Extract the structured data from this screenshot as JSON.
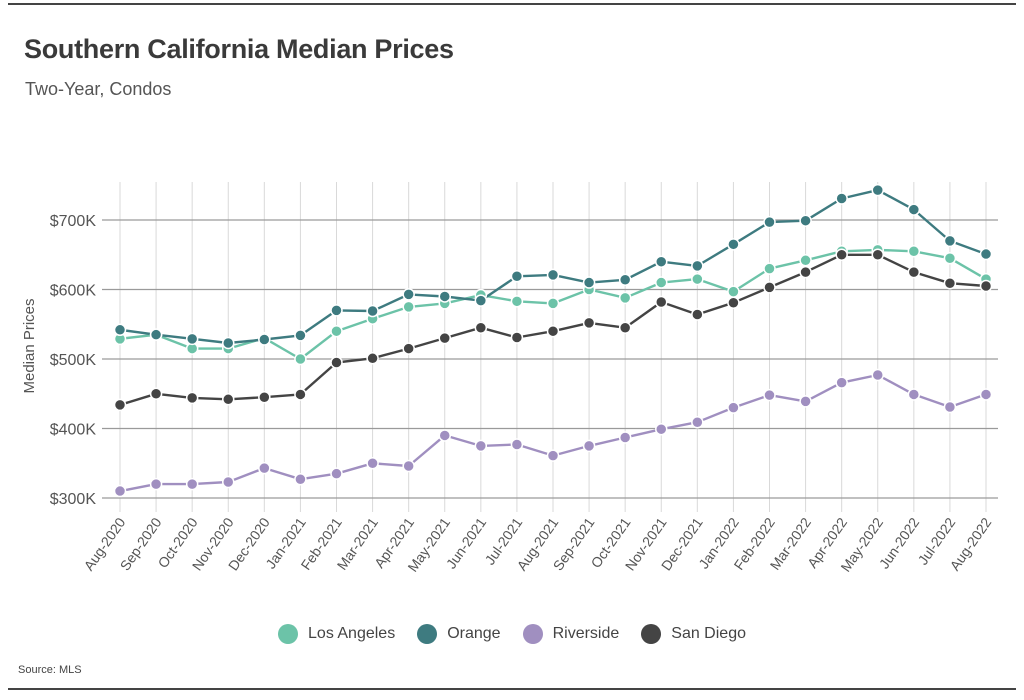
{
  "header": {
    "title": "Southern California Median Prices",
    "subtitle": "Two-Year, Condos"
  },
  "footer": {
    "source": "Source:  MLS"
  },
  "chart_data": {
    "type": "line",
    "title": "Southern California Median Prices",
    "subtitle": "Two-Year, Condos",
    "xlabel": "",
    "ylabel": "Median Prices",
    "ylim": [
      300000,
      750000
    ],
    "yticks": [
      300000,
      400000,
      500000,
      600000,
      700000
    ],
    "ytick_labels": [
      "$300K",
      "$400K",
      "$500K",
      "$600K",
      "$700K"
    ],
    "grid": "vertical",
    "legend_position": "bottom",
    "categories": [
      "Aug-2020",
      "Sep-2020",
      "Oct-2020",
      "Nov-2020",
      "Dec-2020",
      "Jan-2021",
      "Feb-2021",
      "Mar-2021",
      "Apr-2021",
      "May-2021",
      "Jun-2021",
      "Jul-2021",
      "Aug-2021",
      "Sep-2021",
      "Oct-2021",
      "Nov-2021",
      "Dec-2021",
      "Jan-2022",
      "Feb-2022",
      "Mar-2022",
      "Apr-2022",
      "May-2022",
      "Jun-2022",
      "Jul-2022",
      "Aug-2022"
    ],
    "series": [
      {
        "name": "Los Angeles",
        "color": "#6cc3a8",
        "values": [
          529000,
          535000,
          515000,
          515000,
          530000,
          500000,
          540000,
          558000,
          575000,
          580000,
          592000,
          583000,
          580000,
          600000,
          588000,
          610000,
          615000,
          597000,
          630000,
          642000,
          655000,
          657000,
          655000,
          645000,
          615000
        ]
      },
      {
        "name": "Orange",
        "color": "#3e7b80",
        "values": [
          542000,
          535000,
          529000,
          523000,
          528000,
          534000,
          570000,
          569000,
          593000,
          590000,
          584000,
          619000,
          621000,
          610000,
          614000,
          640000,
          634000,
          665000,
          697000,
          699000,
          731000,
          743000,
          715000,
          670000,
          651000
        ]
      },
      {
        "name": "Riverside",
        "color": "#a08fc0",
        "values": [
          310000,
          320000,
          320000,
          323000,
          343000,
          327000,
          335000,
          350000,
          346000,
          390000,
          375000,
          377000,
          361000,
          375000,
          387000,
          399000,
          409000,
          430000,
          448000,
          439000,
          466000,
          477000,
          449000,
          431000,
          449000
        ]
      },
      {
        "name": "San Diego",
        "color": "#444444",
        "values": [
          434000,
          450000,
          444000,
          442000,
          445000,
          449000,
          495000,
          501000,
          515000,
          530000,
          545000,
          531000,
          540000,
          552000,
          545000,
          582000,
          564000,
          581000,
          603000,
          625000,
          650000,
          650000,
          625000,
          609000,
          605000
        ]
      }
    ]
  }
}
